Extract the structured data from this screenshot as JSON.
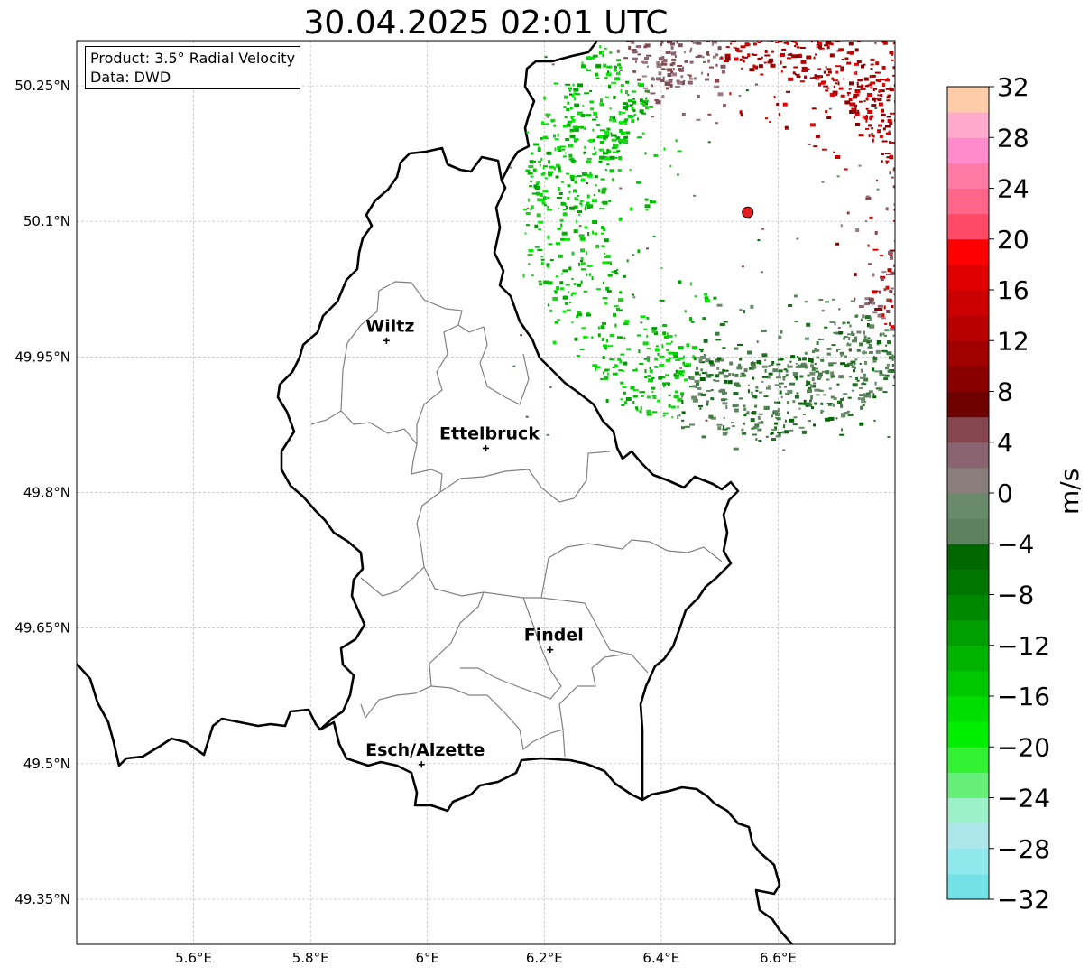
{
  "title": "30.04.2025 02:01 UTC",
  "info": {
    "product_line": "Product: 3.5° Radial Velocity",
    "data_line": "Data: DWD"
  },
  "axes": {
    "lon_range": [
      5.4,
      6.8
    ],
    "lat_range": [
      49.3,
      50.3
    ],
    "x_ticks": [
      {
        "value": 5.6,
        "label": "5.6°E"
      },
      {
        "value": 5.8,
        "label": "5.8°E"
      },
      {
        "value": 6.0,
        "label": "6°E"
      },
      {
        "value": 6.2,
        "label": "6.2°E"
      },
      {
        "value": 6.4,
        "label": "6.4°E"
      },
      {
        "value": 6.6,
        "label": "6.6°E"
      }
    ],
    "y_ticks": [
      {
        "value": 50.25,
        "label": "50.25°N"
      },
      {
        "value": 50.1,
        "label": "50.1°N"
      },
      {
        "value": 49.95,
        "label": "49.95°N"
      },
      {
        "value": 49.8,
        "label": "49.8°N"
      },
      {
        "value": 49.65,
        "label": "49.65°N"
      },
      {
        "value": 49.5,
        "label": "49.5°N"
      },
      {
        "value": 49.35,
        "label": "49.35°N"
      }
    ],
    "grid": true
  },
  "cities": [
    {
      "name": "Wiltz",
      "lon": 5.93,
      "lat": 49.968
    },
    {
      "name": "Ettelbruck",
      "lon": 6.1,
      "lat": 49.849
    },
    {
      "name": "Findel",
      "lon": 6.21,
      "lat": 49.626
    },
    {
      "name": "Esch/Alzette",
      "lon": 5.99,
      "lat": 49.499
    }
  ],
  "radar_site": {
    "lon": 6.548,
    "lat": 50.11,
    "color": "#e02020"
  },
  "colorbar": {
    "unit": "m/s",
    "vmin": -32,
    "vmax": 32,
    "ticks": [
      {
        "value": 32,
        "label": "32"
      },
      {
        "value": 28,
        "label": "28"
      },
      {
        "value": 24,
        "label": "24"
      },
      {
        "value": 20,
        "label": "20"
      },
      {
        "value": 16,
        "label": "16"
      },
      {
        "value": 12,
        "label": "12"
      },
      {
        "value": 8,
        "label": "8"
      },
      {
        "value": 4,
        "label": "4"
      },
      {
        "value": 0,
        "label": "0"
      },
      {
        "value": -4,
        "label": "−4"
      },
      {
        "value": -8,
        "label": "−8"
      },
      {
        "value": -12,
        "label": "−12"
      },
      {
        "value": -16,
        "label": "−16"
      },
      {
        "value": -20,
        "label": "−20"
      },
      {
        "value": -24,
        "label": "−24"
      },
      {
        "value": -28,
        "label": "−28"
      },
      {
        "value": -32,
        "label": "−32"
      }
    ],
    "colors": [
      "#73e2e6",
      "#8ee8ec",
      "#ade6ea",
      "#9cf0c8",
      "#66ee7a",
      "#33f233",
      "#00ee00",
      "#00dd00",
      "#00c800",
      "#00b400",
      "#009e00",
      "#008800",
      "#007600",
      "#006600",
      "#5e8260",
      "#6a8a6c",
      "#8a7e7a",
      "#8a6470",
      "#86464e",
      "#6e0000",
      "#8a0000",
      "#a00000",
      "#b80000",
      "#cc0000",
      "#e00000",
      "#ff0000",
      "#ff4a66",
      "#ff6688",
      "#ff7aa4",
      "#ff8acc",
      "#ffaacc",
      "#ffccaa"
    ]
  }
}
